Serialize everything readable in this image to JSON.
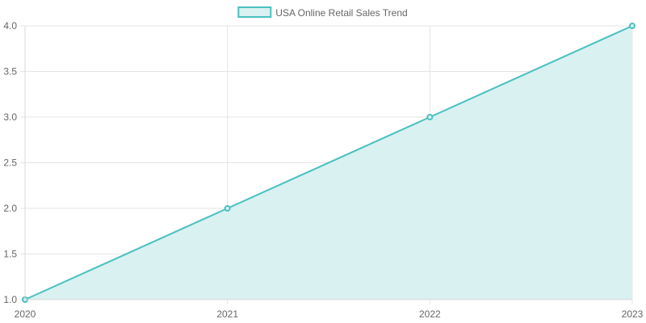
{
  "chart_data": {
    "type": "area",
    "title": "",
    "xlabel": "",
    "ylabel": "",
    "categories": [
      "2020",
      "2021",
      "2022",
      "2023"
    ],
    "series": [
      {
        "name": "USA Online Retail Sales Trend",
        "values": [
          1.0,
          2.0,
          3.0,
          4.0
        ]
      }
    ],
    "ylim": [
      1.0,
      4.0
    ],
    "yticks": [
      "1.0",
      "1.5",
      "2.0",
      "2.5",
      "3.0",
      "3.5",
      "4.0"
    ],
    "grid": true,
    "legend_position": "top-center",
    "colors": {
      "line": "#4bc0c0",
      "fill": "#d9f1f1",
      "grid": "#e5e5e5",
      "text": "#666666"
    }
  }
}
